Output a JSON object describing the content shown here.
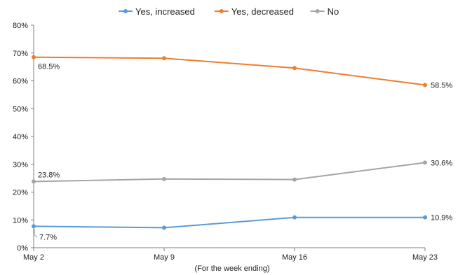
{
  "chart_data": {
    "type": "line",
    "title": "",
    "xlabel": "(For the week ending)",
    "ylabel": "",
    "x": [
      "May 2",
      "May 9",
      "May 16",
      "May 23"
    ],
    "ylim": [
      0,
      80
    ],
    "yticks": [
      "0%",
      "10%",
      "20%",
      "30%",
      "40%",
      "50%",
      "60%",
      "70%",
      "80%"
    ],
    "grid": false,
    "legend_position": "top",
    "series": [
      {
        "name": "Yes, increased",
        "color": "#5b9bd5",
        "values": [
          7.7,
          7.2,
          10.9,
          10.9
        ],
        "labels": [
          {
            "index": 0,
            "text": "7.7%"
          },
          {
            "index": 3,
            "text": "10.9%"
          }
        ]
      },
      {
        "name": "Yes, decreased",
        "color": "#ed7d31",
        "values": [
          68.5,
          68.1,
          64.6,
          58.5
        ],
        "labels": [
          {
            "index": 0,
            "text": "68.5%"
          },
          {
            "index": 3,
            "text": "58.5%"
          }
        ]
      },
      {
        "name": "No",
        "color": "#a5a5a5",
        "values": [
          23.8,
          24.7,
          24.5,
          30.6
        ],
        "labels": [
          {
            "index": 0,
            "text": "23.8%"
          },
          {
            "index": 3,
            "text": "30.6%"
          }
        ]
      }
    ]
  }
}
